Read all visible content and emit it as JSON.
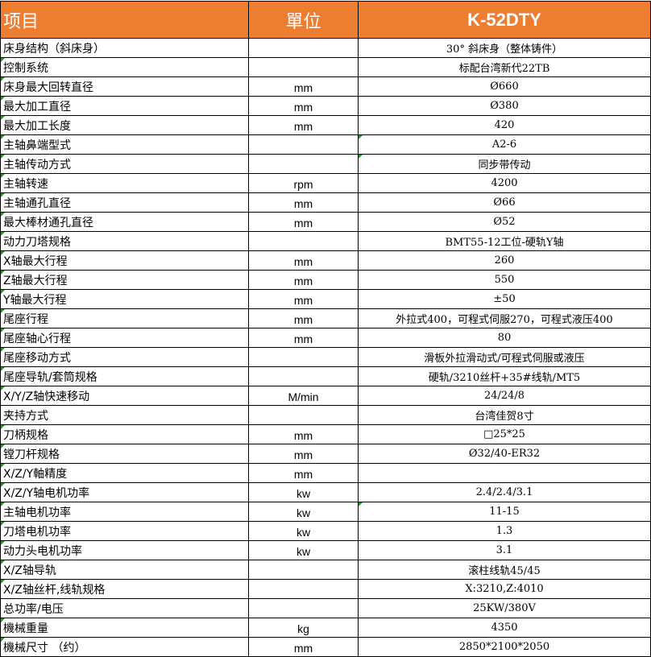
{
  "header": {
    "item": "项目",
    "unit": "單位",
    "model": "K-52DTY"
  },
  "colors": {
    "header_bg": "#ED7D31",
    "header_text": "#FFFFFF"
  },
  "rows": [
    {
      "item": "床身结构（斜床身）",
      "unit": "",
      "value": "30° 斜床身（整体铸件）"
    },
    {
      "item": "控制系统",
      "unit": "",
      "value": "标配台湾新代22TB"
    },
    {
      "item": "床身最大回转直径",
      "unit": "mm",
      "value": "Ø660"
    },
    {
      "item": "最大加工直径",
      "unit": "mm",
      "value": "Ø380"
    },
    {
      "item": "最大加工长度",
      "unit": "mm",
      "value": "420"
    },
    {
      "item": "主轴鼻端型式",
      "unit": "",
      "value": "A2-6"
    },
    {
      "item": "主轴传动方式",
      "unit": "",
      "value": "同步带传动"
    },
    {
      "item": "主轴转速",
      "unit": "rpm",
      "value": "4200"
    },
    {
      "item": "主轴通孔直径",
      "unit": "mm",
      "value": "Ø66"
    },
    {
      "item": "最大棒材通孔直径",
      "unit": "mm",
      "value": "Ø52"
    },
    {
      "item": "动力刀塔规格",
      "unit": "",
      "value": "BMT55-12工位-硬轨Y轴"
    },
    {
      "item": "X轴最大行程",
      "unit": "mm",
      "value": "260"
    },
    {
      "item": "Z轴最大行程",
      "unit": "mm",
      "value": "550"
    },
    {
      "item": "Y轴最大行程",
      "unit": "mm",
      "value": "±50"
    },
    {
      "item": "尾座行程",
      "unit": "mm",
      "value": "外拉式400，可程式伺服270，可程式液压400"
    },
    {
      "item": "尾座轴心行程",
      "unit": "mm",
      "value": "80"
    },
    {
      "item": "尾座移动方式",
      "unit": "",
      "value": "滑板外拉滑动式/可程式伺服或液压"
    },
    {
      "item": "尾座导轨/套筒规格",
      "unit": "",
      "value": "硬轨/3210丝杆+35#线轨/MT5"
    },
    {
      "item": "X/Y/Z轴快速移动",
      "unit": "M/min",
      "value": "24/24/8"
    },
    {
      "item": "夹持方式",
      "unit": "",
      "value": "台湾佳贺8寸"
    },
    {
      "item": "刀柄规格",
      "unit": "mm",
      "value": "□25*25"
    },
    {
      "item": "镗刀杆规格",
      "unit": "mm",
      "value": "Ø32/40-ER32"
    },
    {
      "item": "X/Z/Y軸精度",
      "unit": "mm",
      "value": ""
    },
    {
      "item": "X/Z/Y轴电机功率",
      "unit": "kw",
      "value": "2.4/2.4/3.1"
    },
    {
      "item": "主轴电机功率",
      "unit": "kw",
      "value": "11-15"
    },
    {
      "item": "刀塔电机功率",
      "unit": "kw",
      "value": "1.3"
    },
    {
      "item": "动力头电机功率",
      "unit": "kw",
      "value": "3.1"
    },
    {
      "item": "X/Z轴导轨",
      "unit": "",
      "value": "滚柱线轨45/45"
    },
    {
      "item": "X/Z轴丝杆,线轨规格",
      "unit": "",
      "value": "X:3210,Z:4010"
    },
    {
      "item": "总功率/电压",
      "unit": "",
      "value": "25KW/380V"
    },
    {
      "item": "機械重量",
      "unit": "kg",
      "value": "4350"
    },
    {
      "item": "機械尺寸 （约）",
      "unit": "mm",
      "value": "2850*2100*2050"
    }
  ]
}
